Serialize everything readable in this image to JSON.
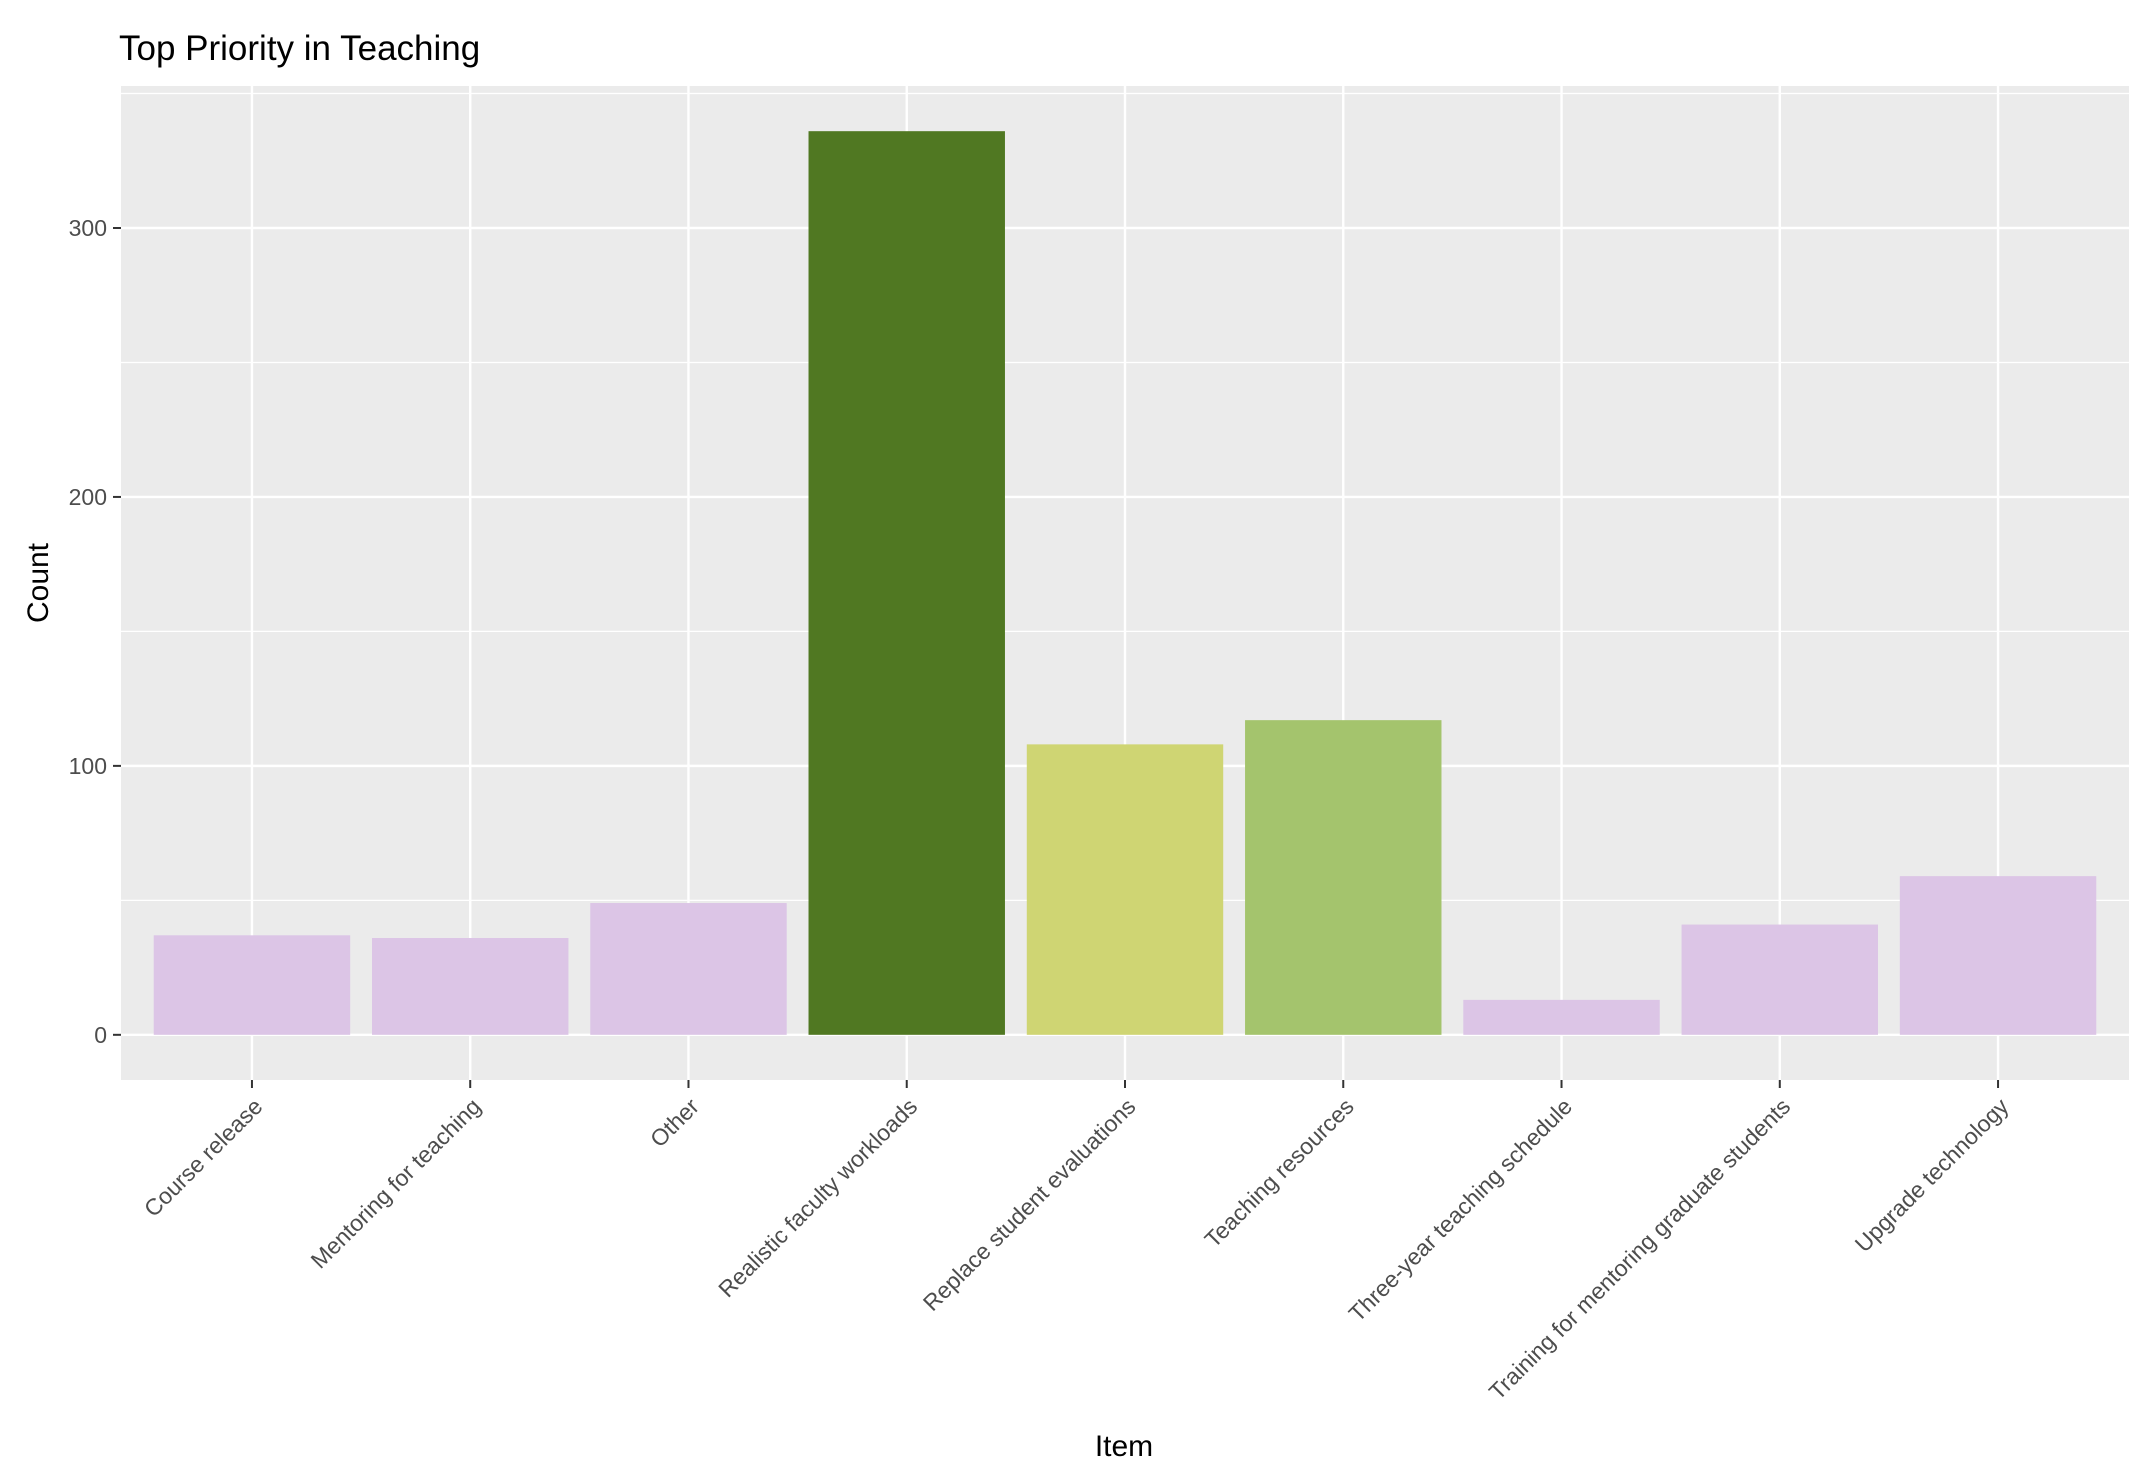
{
  "chart_data": {
    "type": "bar",
    "title": "Top Priority in Teaching",
    "xlabel": "Item",
    "ylabel": "Count",
    "categories": [
      "Course release",
      "Mentoring for teaching",
      "Other",
      "Realistic faculty workloads",
      "Replace student evaluations",
      "Teaching resources",
      "Three-year teaching schedule",
      "Training for mentoring graduate students",
      "Upgrade technology"
    ],
    "values": [
      37,
      36,
      49,
      336,
      108,
      117,
      13,
      41,
      59
    ],
    "colors": [
      "#dcc5e6",
      "#dcc5e6",
      "#dcc5e6",
      "#507822",
      "#cfd573",
      "#a4c46d",
      "#dcc5e6",
      "#dcc5e6",
      "#dcc5e6"
    ],
    "ylim": [
      -16.8,
      352.8
    ],
    "yticks": [
      0,
      100,
      200,
      300
    ],
    "grid": true,
    "legend": "none",
    "panel_background": "#ebebeb",
    "grid_color": "#ffffff"
  }
}
